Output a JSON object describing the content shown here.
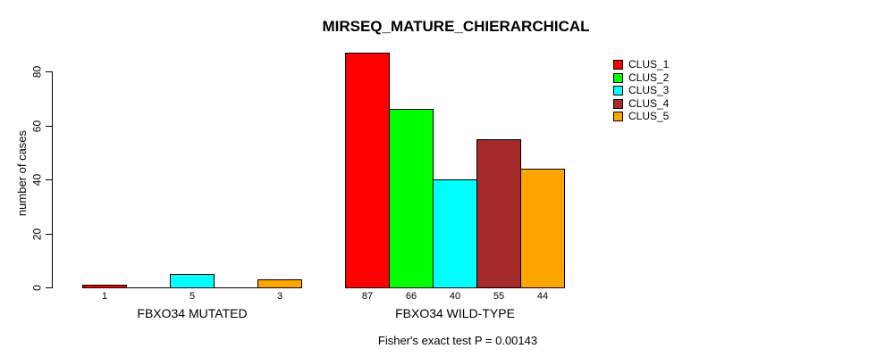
{
  "title": "MIRSEQ_MATURE_CHIERARCHICAL",
  "subtitle": "Fisher's exact test P = 0.00143",
  "y_axis": {
    "label": "number of cases",
    "ticks": [
      "0",
      "20",
      "40",
      "60",
      "80"
    ]
  },
  "legend": {
    "items": [
      {
        "label": "CLUS_1",
        "color": "#FF0000"
      },
      {
        "label": "CLUS_2",
        "color": "#00FF00"
      },
      {
        "label": "CLUS_3",
        "color": "#00FFFF"
      },
      {
        "label": "CLUS_4",
        "color": "#A52A2A"
      },
      {
        "label": "CLUS_5",
        "color": "#FFA500"
      }
    ]
  },
  "chart_data": {
    "type": "bar",
    "title": "MIRSEQ_MATURE_CHIERARCHICAL",
    "ylabel": "number of cases",
    "ylim": [
      0,
      87
    ],
    "ytick_values": [
      0,
      20,
      40,
      60,
      80
    ],
    "grid": false,
    "legend_position": "top-right",
    "series_names": [
      "CLUS_1",
      "CLUS_2",
      "CLUS_3",
      "CLUS_4",
      "CLUS_5"
    ],
    "series_colors": [
      "#FF0000",
      "#00FF00",
      "#00FFFF",
      "#A52A2A",
      "#FFA500"
    ],
    "groups": [
      {
        "label": "FBXO34 MUTATED",
        "values": [
          1,
          0,
          5,
          0,
          3
        ],
        "bar_labels": [
          "1",
          "",
          "5",
          "",
          "3"
        ]
      },
      {
        "label": "FBXO34 WILD-TYPE",
        "values": [
          87,
          66,
          40,
          55,
          44
        ],
        "bar_labels": [
          "87",
          "66",
          "40",
          "55",
          "44"
        ]
      }
    ],
    "annotation": "Fisher's exact test P = 0.00143"
  }
}
